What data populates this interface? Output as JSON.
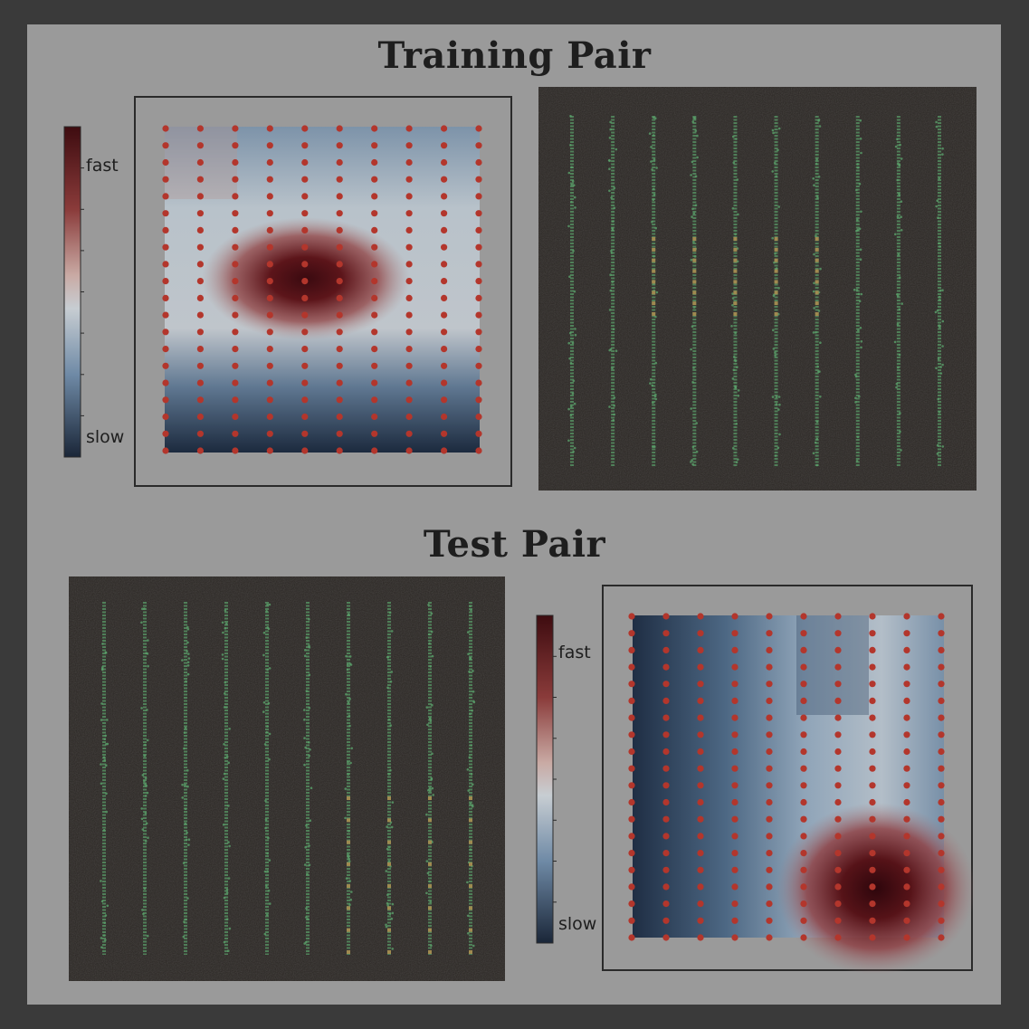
{
  "titles": {
    "training": "Training Pair",
    "test": "Test Pair"
  },
  "colorbar": {
    "fast_label": "fast",
    "slow_label": "slow"
  },
  "colors": {
    "background": "#9a9a9a",
    "border": "#3a3a3a",
    "fast": "#4a0e12",
    "slow": "#1c2a3e",
    "dot": "#b3362c",
    "culture_bg": "#2b2724",
    "culture_line": "#5aa06a",
    "culture_active": "#a08a50"
  },
  "grid": {
    "columns": 10,
    "rows": 20
  },
  "icons": {
    "speed_map": "heatmap-panel",
    "culture": "culture-image-panel"
  }
}
